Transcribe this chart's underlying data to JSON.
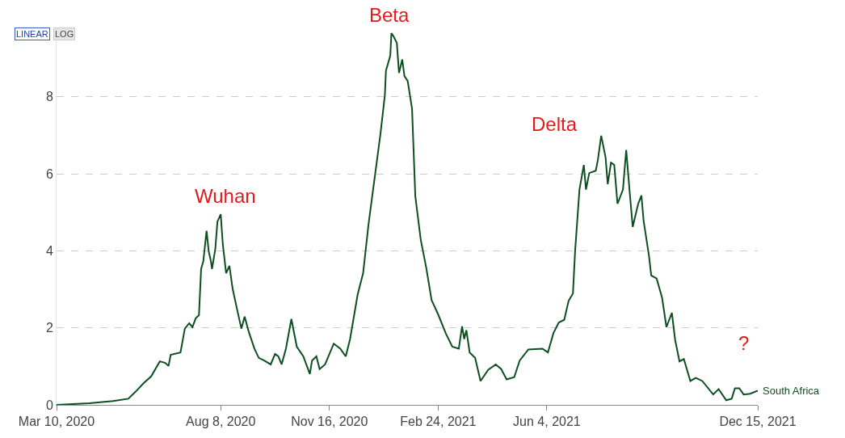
{
  "chart_data": {
    "type": "line",
    "x": [
      "2020-03-10",
      "2020-04-09",
      "2020-05-01",
      "2020-05-15",
      "2020-05-22",
      "2020-05-29",
      "2020-06-05",
      "2020-06-13",
      "2020-06-18",
      "2020-06-21",
      "2020-06-23",
      "2020-07-02",
      "2020-07-06",
      "2020-07-10",
      "2020-07-13",
      "2020-07-16",
      "2020-07-19",
      "2020-07-21",
      "2020-07-23",
      "2020-07-26",
      "2020-07-28",
      "2020-07-30",
      "2020-07-31",
      "2020-08-03",
      "2020-08-05",
      "2020-08-08",
      "2020-08-10",
      "2020-08-13",
      "2020-08-16",
      "2020-08-19",
      "2020-08-23",
      "2020-08-27",
      "2020-08-30",
      "2020-09-03",
      "2020-09-08",
      "2020-09-12",
      "2020-09-17",
      "2020-09-23",
      "2020-09-27",
      "2020-09-30",
      "2020-10-03",
      "2020-10-07",
      "2020-10-12",
      "2020-10-17",
      "2020-10-23",
      "2020-10-29",
      "2020-10-31",
      "2020-11-04",
      "2020-11-07",
      "2020-11-12",
      "2020-11-20",
      "2020-11-26",
      "2020-12-01",
      "2020-12-05",
      "2020-12-12",
      "2020-12-17",
      "2020-12-22",
      "2020-12-28",
      "2021-01-02",
      "2021-01-06",
      "2021-01-07",
      "2021-01-11",
      "2021-01-12",
      "2021-01-14",
      "2021-01-17",
      "2021-01-19",
      "2021-01-22",
      "2021-01-24",
      "2021-01-27",
      "2021-01-31",
      "2021-02-03",
      "2021-02-08",
      "2021-02-13",
      "2021-02-18",
      "2021-02-24",
      "2021-03-03",
      "2021-03-09",
      "2021-03-15",
      "2021-03-18",
      "2021-03-20",
      "2021-03-22",
      "2021-03-25",
      "2021-03-30",
      "2021-04-04",
      "2021-04-11",
      "2021-04-18",
      "2021-04-23",
      "2021-04-28",
      "2021-05-05",
      "2021-05-10",
      "2021-05-18",
      "2021-05-31",
      "2021-06-05",
      "2021-06-10",
      "2021-06-15",
      "2021-06-20",
      "2021-06-24",
      "2021-06-28",
      "2021-06-30",
      "2021-07-04",
      "2021-07-08",
      "2021-07-10",
      "2021-07-13",
      "2021-07-19",
      "2021-07-21",
      "2021-07-24",
      "2021-07-28",
      "2021-07-30",
      "2021-08-02",
      "2021-08-05",
      "2021-08-08",
      "2021-08-13",
      "2021-08-16",
      "2021-08-19",
      "2021-08-22",
      "2021-08-27",
      "2021-08-30",
      "2021-09-01",
      "2021-09-06",
      "2021-09-08",
      "2021-09-13",
      "2021-09-18",
      "2021-09-22",
      "2021-09-27",
      "2021-09-30",
      "2021-10-04",
      "2021-10-08",
      "2021-10-14",
      "2021-10-19",
      "2021-10-25",
      "2021-11-04",
      "2021-11-09",
      "2021-11-16",
      "2021-11-21",
      "2021-11-24",
      "2021-11-28",
      "2021-12-02",
      "2021-12-08",
      "2021-12-15"
    ],
    "series": [
      {
        "name": "South Africa",
        "color": "#0d4f22",
        "values": [
          0,
          0.04,
          0.1,
          0.16,
          0.35,
          0.56,
          0.74,
          1.13,
          1.09,
          1.01,
          1.3,
          1.36,
          1.98,
          2.12,
          2.02,
          2.25,
          2.33,
          3.53,
          3.73,
          4.52,
          3.98,
          3.73,
          3.53,
          4.04,
          4.76,
          4.95,
          4.15,
          3.42,
          3.61,
          3.01,
          2.49,
          1.98,
          2.29,
          1.88,
          1.46,
          1.22,
          1.15,
          1.05,
          1.32,
          1.26,
          1.05,
          1.46,
          2.23,
          1.51,
          1.26,
          0.8,
          1.15,
          1.26,
          0.93,
          1.05,
          1.59,
          1.46,
          1.26,
          1.71,
          2.87,
          3.42,
          4.7,
          5.98,
          7.05,
          8.04,
          8.68,
          9.07,
          9.65,
          9.57,
          9.4,
          8.62,
          8.97,
          8.54,
          8.41,
          7.69,
          5.42,
          4.29,
          3.57,
          2.72,
          2.35,
          1.86,
          1.51,
          1.46,
          2.04,
          1.71,
          1.94,
          1.36,
          1.22,
          0.62,
          0.91,
          1.05,
          0.93,
          0.66,
          0.72,
          1.15,
          1.44,
          1.46,
          1.36,
          1.86,
          2.14,
          2.21,
          2.7,
          2.89,
          4.0,
          5.59,
          6.23,
          5.59,
          6.02,
          6.08,
          6.37,
          6.99,
          6.43,
          5.73,
          6.29,
          6.23,
          5.22,
          5.59,
          6.62,
          5.59,
          4.62,
          5.22,
          5.44,
          4.78,
          3.86,
          3.36,
          3.28,
          2.78,
          2.02,
          2.39,
          1.69,
          1.13,
          1.19,
          0.62,
          0.7,
          0.62,
          0.27,
          0.41,
          0.12,
          0.16,
          0.43,
          0.43,
          0.27,
          0.29,
          0.37
        ]
      }
    ],
    "xlim": [
      "2020-03-10",
      "2021-12-15"
    ],
    "xticks": [
      {
        "value": "2020-03-10",
        "label": "Mar 10, 2020"
      },
      {
        "value": "2020-08-08",
        "label": "Aug 8, 2020"
      },
      {
        "value": "2020-11-16",
        "label": "Nov 16, 2020"
      },
      {
        "value": "2021-02-24",
        "label": "Feb 24, 2021"
      },
      {
        "value": "2021-06-04",
        "label": "Jun 4, 2021"
      },
      {
        "value": "2021-12-15",
        "label": "Dec 15, 2021"
      }
    ],
    "ylim": [
      0,
      9.8
    ],
    "yticks": [
      0,
      2,
      4,
      6,
      8
    ],
    "grid": "y",
    "legend": false,
    "annotations": [
      "Wuhan",
      "Beta",
      "Delta",
      "?",
      "LINEAR",
      "LOG"
    ]
  }
}
